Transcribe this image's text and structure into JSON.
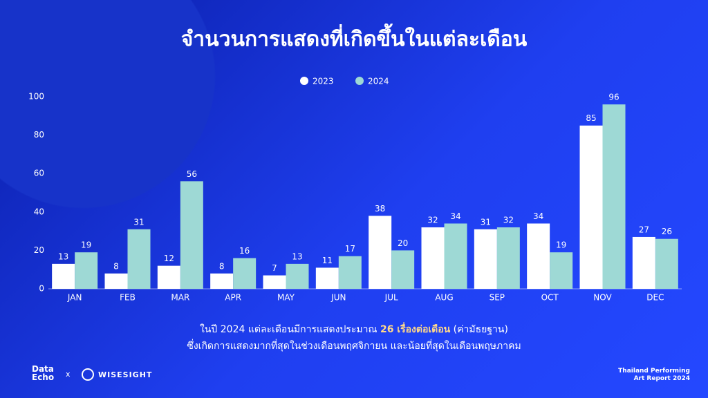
{
  "chart_data": {
    "type": "bar",
    "title": "จำนวนการแสดงที่เกิดขึ้นในแต่ละเดือน",
    "categories": [
      "JAN",
      "FEB",
      "MAR",
      "APR",
      "MAY",
      "JUN",
      "JUL",
      "AUG",
      "SEP",
      "OCT",
      "NOV",
      "DEC"
    ],
    "series": [
      {
        "name": "2023",
        "color": "#ffffff",
        "values": [
          13,
          8,
          12,
          8,
          7,
          11,
          38,
          32,
          31,
          34,
          85,
          27
        ]
      },
      {
        "name": "2024",
        "color": "#9ed9d5",
        "values": [
          19,
          31,
          56,
          16,
          13,
          17,
          20,
          34,
          32,
          19,
          96,
          26
        ]
      }
    ],
    "ylim": [
      0,
      100
    ],
    "yticks": [
      0,
      20,
      40,
      60,
      80,
      100
    ],
    "grid": false,
    "legend": "top"
  },
  "caption": {
    "line1": [
      "ในปี 2024 แต่ละเดือนมีการแสดงประมาณ",
      "26 เรื่องต่อเดือน",
      "(ค่ามัธยฐาน)"
    ],
    "line2": "ซึ่งเกิดการแสดงมากที่สุดในช่วงเดือนพฤศจิกายน และน้อยที่สุดในเดือนพฤษภาคม"
  },
  "footer": {
    "logo1": [
      "Data",
      "Echo"
    ],
    "separator": "x",
    "logo2": "WISESIGHT",
    "report": [
      "Thailand Performing",
      "Art Report 2024"
    ]
  }
}
